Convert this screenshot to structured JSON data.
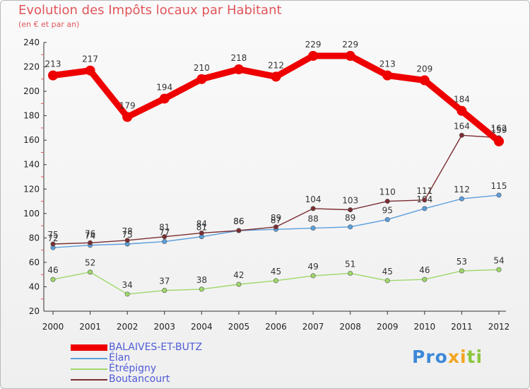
{
  "header": {
    "title": "Evolution des Impôts locaux par Habitant",
    "subtitle": "(en € et par an)"
  },
  "logo": {
    "text": "Proxiti",
    "parts": [
      "Pro",
      "x",
      "i",
      "ti"
    ]
  },
  "chart_data": {
    "type": "line",
    "x": [
      "2000",
      "2001",
      "2002",
      "2003",
      "2004",
      "2005",
      "2006",
      "2007",
      "2008",
      "2009",
      "2010",
      "2011",
      "2012"
    ],
    "ylim": [
      20,
      240
    ],
    "yticks": [
      20,
      40,
      60,
      80,
      100,
      120,
      140,
      160,
      180,
      200,
      220,
      240
    ],
    "grid": false,
    "legend_position": "bottom-left",
    "series": [
      {
        "name": "BALAIVES-ET-BUTZ",
        "color": "#ee0000",
        "values": [
          213,
          217,
          179,
          194,
          210,
          218,
          212,
          229,
          229,
          213,
          209,
          184,
          159
        ],
        "thick": true
      },
      {
        "name": "Élan",
        "color": "#5a9fdc",
        "values": [
          72,
          74,
          75,
          77,
          81,
          86,
          87,
          88,
          89,
          95,
          104,
          112,
          115
        ],
        "thick": false
      },
      {
        "name": "Étrépigny",
        "color": "#9ed86a",
        "values": [
          46,
          52,
          34,
          37,
          38,
          42,
          45,
          49,
          51,
          45,
          46,
          53,
          54
        ],
        "thick": false
      },
      {
        "name": "Boutancourt",
        "color": "#7a2d32",
        "values": [
          75,
          76,
          78,
          81,
          84,
          86,
          89,
          104,
          103,
          110,
          111,
          164,
          162
        ],
        "thick": false
      }
    ]
  }
}
